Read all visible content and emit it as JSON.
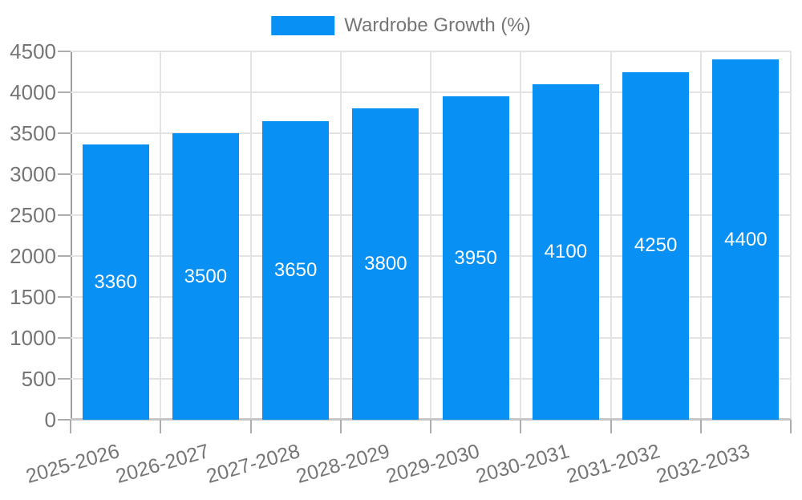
{
  "legend": {
    "label": "Wardrobe Growth (%)"
  },
  "chart_data": {
    "type": "bar",
    "title": "",
    "series_name": "Wardrobe Growth (%)",
    "categories": [
      "2025-2026",
      "2026-2027",
      "2027-2028",
      "2028-2029",
      "2029-2030",
      "2030-2031",
      "2031-2032",
      "2032-2033"
    ],
    "values": [
      3360,
      3500,
      3650,
      3800,
      3950,
      4100,
      4250,
      4400
    ],
    "bar_value_labels": [
      "3360",
      "3500",
      "3650",
      "3800",
      "3950",
      "4100",
      "4250",
      "4400"
    ],
    "xlabel": "",
    "ylabel": "",
    "ylim": [
      0,
      4500
    ],
    "y_ticks": [
      0,
      500,
      1000,
      1500,
      2000,
      2500,
      3000,
      3500,
      4000,
      4500
    ],
    "grid": "on",
    "legend_position": "top-center"
  },
  "colors": {
    "bar": "#0890f4",
    "bar_label_text": "#ffffff",
    "axis_text": "#757575",
    "legend_text": "#757575",
    "gridline": "#e3e3e3",
    "axis_line": "#9e9e9e",
    "baseline": "#c6c6c6",
    "tick": "#adadad"
  }
}
